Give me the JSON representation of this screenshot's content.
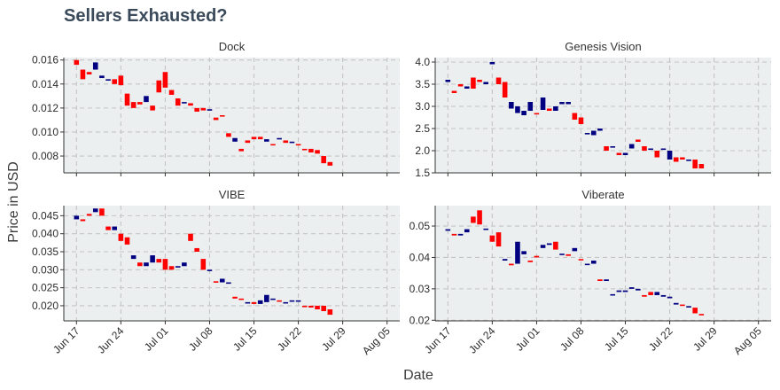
{
  "title": "Sellers Exhausted?",
  "colors": {
    "up": "#000080",
    "down": "#ff0000",
    "panel_bg": "#eceff0"
  },
  "chart_data": {
    "type": "candlestick",
    "title": "Sellers Exhausted?",
    "xlabel": "Date",
    "ylabel": "Price in USD",
    "x_ticks": [
      "2018-06-17",
      "2018-06-24",
      "2018-07-01",
      "2018-07-08",
      "2018-07-15",
      "2018-07-22",
      "2018-07-29",
      "2018-08-05"
    ],
    "x_tick_labels": [
      "Jun 17",
      "Jun 24",
      "Jul 01",
      "Jul 08",
      "Jul 15",
      "Jul 22",
      "Jul 29",
      "Aug 05"
    ],
    "x_range": [
      "2018-06-15",
      "2018-08-07"
    ],
    "grid": true,
    "panels": [
      {
        "name": "Dock",
        "ylim": [
          0.0066,
          0.0162
        ],
        "yticks": [
          0.008,
          0.01,
          0.012,
          0.014,
          0.016
        ],
        "ytick_labels": [
          "0.008",
          "0.010",
          "0.012",
          "0.014",
          "0.016"
        ],
        "open": [
          0.016,
          0.0152,
          0.015,
          0.0152,
          0.0145,
          0.0143,
          0.0144,
          0.0147,
          0.0132,
          0.0125,
          0.0125,
          0.0125,
          0.0122,
          0.0143,
          0.015,
          0.0135,
          0.0128,
          0.0124,
          0.0124,
          0.012,
          0.012,
          0.0118,
          0.0112,
          0.0114,
          0.0099,
          0.0092,
          0.0086,
          0.0093,
          0.0096,
          0.0096,
          0.0092,
          0.009,
          0.0094,
          0.0093,
          0.0091,
          0.009,
          0.0086,
          0.0086,
          0.0085,
          0.008,
          0.0075
        ],
        "close": [
          0.0156,
          0.0144,
          0.0148,
          0.0158,
          0.0147,
          0.0144,
          0.014,
          0.0139,
          0.0122,
          0.012,
          0.0123,
          0.013,
          0.0118,
          0.0133,
          0.0137,
          0.0131,
          0.0122,
          0.0125,
          0.0122,
          0.0117,
          0.0118,
          0.0119,
          0.011,
          0.0113,
          0.0096,
          0.0095,
          0.0084,
          0.0091,
          0.0094,
          0.0094,
          0.0094,
          0.0089,
          0.0095,
          0.0091,
          0.0092,
          0.0089,
          0.0085,
          0.0083,
          0.0082,
          0.0074,
          0.0072
        ]
      },
      {
        "name": "Genesis Vision",
        "ylim": [
          1.5,
          4.1
        ],
        "yticks": [
          1.5,
          2.0,
          2.5,
          3.0,
          3.5,
          4.0
        ],
        "ytick_labels": [
          "1.5",
          "2.0",
          "2.5",
          "3.0",
          "3.5",
          "4.0"
        ],
        "open": [
          3.55,
          3.35,
          3.5,
          3.4,
          3.65,
          3.6,
          3.5,
          3.95,
          3.65,
          3.55,
          2.95,
          2.85,
          2.8,
          2.9,
          2.85,
          2.92,
          2.95,
          2.9,
          3.05,
          3.05,
          2.85,
          2.75,
          2.4,
          2.35,
          2.45,
          2.1,
          2.1,
          1.95,
          1.9,
          2.05,
          2.25,
          2.1,
          2.05,
          2.0,
          2.05,
          1.8,
          1.85,
          1.85,
          1.8,
          1.8,
          1.7
        ],
        "close": [
          3.6,
          3.3,
          3.45,
          3.45,
          3.4,
          3.55,
          3.55,
          4.0,
          3.5,
          3.2,
          3.1,
          3.0,
          2.9,
          3.1,
          2.83,
          3.2,
          2.9,
          3.0,
          3.1,
          3.1,
          2.7,
          2.6,
          2.4,
          2.45,
          2.5,
          2.0,
          2.1,
          1.9,
          1.95,
          2.15,
          2.2,
          2.0,
          2.05,
          1.85,
          2.05,
          2.0,
          1.75,
          1.8,
          1.8,
          1.6,
          1.6
        ]
      },
      {
        "name": "VIBE",
        "ylim": [
          0.0158,
          0.0478
        ],
        "yticks": [
          0.02,
          0.025,
          0.03,
          0.035,
          0.04,
          0.045
        ],
        "ytick_labels": [
          "0.020",
          "0.025",
          "0.030",
          "0.035",
          "0.040",
          "0.045"
        ],
        "open": [
          0.044,
          0.044,
          0.0455,
          0.046,
          0.047,
          0.042,
          0.041,
          0.04,
          0.039,
          0.033,
          0.032,
          0.031,
          0.032,
          0.033,
          0.033,
          0.031,
          0.031,
          0.031,
          0.04,
          0.036,
          0.033,
          0.03,
          0.0268,
          0.0265,
          0.0265,
          0.0225,
          0.022,
          0.021,
          0.021,
          0.0205,
          0.021,
          0.022,
          0.0215,
          0.021,
          0.0215,
          0.0215,
          0.02,
          0.02,
          0.02,
          0.02,
          0.019
        ],
        "close": [
          0.045,
          0.0435,
          0.045,
          0.047,
          0.045,
          0.041,
          0.042,
          0.038,
          0.037,
          0.034,
          0.031,
          0.032,
          0.034,
          0.032,
          0.03,
          0.03,
          0.031,
          0.032,
          0.038,
          0.035,
          0.03,
          0.03,
          0.0265,
          0.0275,
          0.0265,
          0.022,
          0.0218,
          0.021,
          0.0205,
          0.0215,
          0.023,
          0.022,
          0.0212,
          0.021,
          0.0215,
          0.0215,
          0.0197,
          0.0195,
          0.019,
          0.0185,
          0.0175
        ]
      },
      {
        "name": "Viberate",
        "ylim": [
          0.0198,
          0.0565
        ],
        "yticks": [
          0.02,
          0.03,
          0.04,
          0.05
        ],
        "ytick_labels": [
          "0.02",
          "0.03",
          "0.04",
          "0.05"
        ],
        "open": [
          0.0485,
          0.0475,
          0.047,
          0.048,
          0.053,
          0.055,
          0.049,
          0.047,
          0.048,
          0.039,
          0.038,
          0.038,
          0.041,
          0.039,
          0.0405,
          0.043,
          0.044,
          0.045,
          0.041,
          0.041,
          0.042,
          0.0395,
          0.038,
          0.038,
          0.033,
          0.0325,
          0.028,
          0.029,
          0.029,
          0.03,
          0.0295,
          0.028,
          0.029,
          0.028,
          0.0275,
          0.027,
          0.025,
          0.025,
          0.0245,
          0.024,
          0.022
        ],
        "close": [
          0.049,
          0.047,
          0.0475,
          0.049,
          0.051,
          0.0505,
          0.0492,
          0.045,
          0.0435,
          0.0395,
          0.0375,
          0.045,
          0.042,
          0.0385,
          0.04,
          0.044,
          0.0445,
          0.0425,
          0.0412,
          0.0405,
          0.043,
          0.0393,
          0.038,
          0.039,
          0.0325,
          0.033,
          0.0283,
          0.0295,
          0.0295,
          0.0305,
          0.03,
          0.0275,
          0.028,
          0.029,
          0.028,
          0.0275,
          0.0255,
          0.0248,
          0.0245,
          0.0222,
          0.0218
        ]
      }
    ]
  }
}
